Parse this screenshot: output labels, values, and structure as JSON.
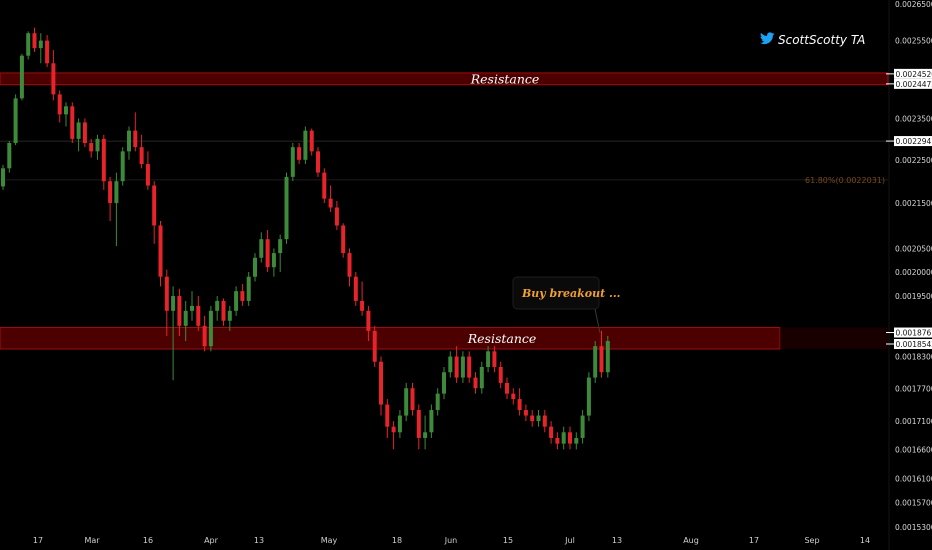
{
  "chart_data": {
    "type": "candlestick",
    "y_scale": "log",
    "ylim": [
      0.00153,
      0.00265
    ],
    "y_ticks": [
      "0.0026500",
      "0.0025500",
      "0.0023500",
      "0.0022500",
      "0.0021500",
      "0.0020500",
      "0.0020000",
      "0.0019500",
      "0.0018300",
      "0.0017700",
      "0.0017100",
      "0.0016600",
      "0.0016100",
      "0.0015700",
      "0.0015300"
    ],
    "price_labels": [
      {
        "text": "0.0024520",
        "value": 0.002452,
        "style": "boxed"
      },
      {
        "text": "0.0024472",
        "value": 0.0024472,
        "style": "boxed"
      },
      {
        "text": "0.0022947",
        "value": 0.0022947,
        "style": "boxed"
      },
      {
        "text": "0.0018767",
        "value": 0.0018767,
        "style": "boxed"
      },
      {
        "text": "0.0018542",
        "value": 0.0018542,
        "style": "boxed"
      }
    ],
    "x_ticks": [
      "17",
      "Mar",
      "16",
      "Apr",
      "13",
      "May",
      "18",
      "Jun",
      "15",
      "Jul",
      "13",
      "Aug",
      "17",
      "Sep",
      "14"
    ],
    "zones": [
      {
        "label": "Resistance",
        "low": 0.0024472,
        "high": 0.002452
      },
      {
        "label": "Resistance",
        "low": 0.0018542,
        "high": 0.0018767
      }
    ],
    "levels": [
      {
        "value": 0.0022947,
        "label": ""
      },
      {
        "value": 0.0022031,
        "label": "61.80%(0.0022031)"
      }
    ],
    "annotations": [
      {
        "text": "Buy breakout ..."
      }
    ],
    "candles": [
      [
        0.002188,
        0.002238,
        0.00218,
        0.00223
      ],
      [
        0.00223,
        0.002295,
        0.00222,
        0.00229
      ],
      [
        0.00229,
        0.00241,
        0.002285,
        0.0024
      ],
      [
        0.0024,
        0.002515,
        0.002395,
        0.00251
      ],
      [
        0.00251,
        0.002575,
        0.0025,
        0.00257
      ],
      [
        0.00257,
        0.002585,
        0.00252,
        0.00253
      ],
      [
        0.00253,
        0.00257,
        0.00249,
        0.00255
      ],
      [
        0.00255,
        0.002565,
        0.00248,
        0.00249
      ],
      [
        0.00249,
        0.002525,
        0.002395,
        0.00241
      ],
      [
        0.00241,
        0.00242,
        0.00234,
        0.00236
      ],
      [
        0.00236,
        0.00239,
        0.00233,
        0.00238
      ],
      [
        0.00238,
        0.00239,
        0.00229,
        0.0023
      ],
      [
        0.0023,
        0.00235,
        0.00227,
        0.00234
      ],
      [
        0.00234,
        0.00235,
        0.00228,
        0.00229
      ],
      [
        0.00229,
        0.0023,
        0.002255,
        0.00227
      ],
      [
        0.00227,
        0.00231,
        0.00225,
        0.0023
      ],
      [
        0.0023,
        0.00231,
        0.00218,
        0.0022
      ],
      [
        0.0022,
        0.00221,
        0.00211,
        0.00215
      ],
      [
        0.00215,
        0.00222,
        0.002055,
        0.0022
      ],
      [
        0.0022,
        0.00228,
        0.00219,
        0.00227
      ],
      [
        0.00227,
        0.00233,
        0.00225,
        0.00232
      ],
      [
        0.00232,
        0.002365,
        0.00227,
        0.00228
      ],
      [
        0.00228,
        0.00231,
        0.00223,
        0.00224
      ],
      [
        0.00224,
        0.00227,
        0.00218,
        0.00219
      ],
      [
        0.00219,
        0.0022,
        0.00206,
        0.0021
      ],
      [
        0.0021,
        0.00211,
        0.00197,
        0.00199
      ],
      [
        0.00199,
        0.002005,
        0.00187,
        0.00192
      ],
      [
        0.00192,
        0.00197,
        0.001785,
        0.00195
      ],
      [
        0.00195,
        0.001965,
        0.00187,
        0.00189
      ],
      [
        0.00189,
        0.00194,
        0.00186,
        0.00192
      ],
      [
        0.00192,
        0.00196,
        0.0019,
        0.00193
      ],
      [
        0.00193,
        0.00195,
        0.00188,
        0.00189
      ],
      [
        0.00189,
        0.00191,
        0.00184,
        0.00185
      ],
      [
        0.00185,
        0.00193,
        0.00184,
        0.00192
      ],
      [
        0.00192,
        0.00195,
        0.0019,
        0.00194
      ],
      [
        0.00194,
        0.001945,
        0.00189,
        0.0019
      ],
      [
        0.0019,
        0.00193,
        0.00188,
        0.00192
      ],
      [
        0.00192,
        0.00197,
        0.00191,
        0.00196
      ],
      [
        0.00196,
        0.001975,
        0.00193,
        0.00194
      ],
      [
        0.00194,
        0.002,
        0.00193,
        0.00199
      ],
      [
        0.00199,
        0.00204,
        0.00198,
        0.00203
      ],
      [
        0.00203,
        0.002085,
        0.00202,
        0.00207
      ],
      [
        0.00207,
        0.00209,
        0.002,
        0.00201
      ],
      [
        0.00201,
        0.00205,
        0.00199,
        0.00204
      ],
      [
        0.00204,
        0.00208,
        0.002,
        0.00207
      ],
      [
        0.00207,
        0.00222,
        0.00206,
        0.00221
      ],
      [
        0.00221,
        0.00229,
        0.0022,
        0.00228
      ],
      [
        0.00228,
        0.00229,
        0.00224,
        0.00225
      ],
      [
        0.00225,
        0.00233,
        0.00224,
        0.00232
      ],
      [
        0.00232,
        0.002325,
        0.00226,
        0.00227
      ],
      [
        0.00227,
        0.00228,
        0.00221,
        0.00222
      ],
      [
        0.00222,
        0.00223,
        0.00215,
        0.00216
      ],
      [
        0.00216,
        0.00219,
        0.00213,
        0.00214
      ],
      [
        0.00214,
        0.002155,
        0.00209,
        0.0021
      ],
      [
        0.0021,
        0.002105,
        0.00203,
        0.00204
      ],
      [
        0.00204,
        0.00205,
        0.00197,
        0.00199
      ],
      [
        0.00199,
        0.002,
        0.00193,
        0.00194
      ],
      [
        0.00194,
        0.00198,
        0.00191,
        0.00192
      ],
      [
        0.00192,
        0.00193,
        0.00186,
        0.00188
      ],
      [
        0.00188,
        0.00189,
        0.00181,
        0.00182
      ],
      [
        0.00182,
        0.00183,
        0.00172,
        0.00174
      ],
      [
        0.00174,
        0.00175,
        0.00168,
        0.0017
      ],
      [
        0.0017,
        0.00171,
        0.00166,
        0.00169
      ],
      [
        0.00169,
        0.00173,
        0.00168,
        0.00172
      ],
      [
        0.00172,
        0.00178,
        0.00171,
        0.00177
      ],
      [
        0.00177,
        0.00178,
        0.00172,
        0.00173
      ],
      [
        0.00173,
        0.00174,
        0.00166,
        0.00168
      ],
      [
        0.00168,
        0.00172,
        0.00166,
        0.00169
      ],
      [
        0.00169,
        0.00174,
        0.00168,
        0.00173
      ],
      [
        0.00173,
        0.00177,
        0.00172,
        0.00176
      ],
      [
        0.00176,
        0.00181,
        0.00175,
        0.0018
      ],
      [
        0.0018,
        0.00184,
        0.00179,
        0.00183
      ],
      [
        0.00183,
        0.00185,
        0.00178,
        0.00179
      ],
      [
        0.00179,
        0.00184,
        0.00178,
        0.00183
      ],
      [
        0.00183,
        0.00184,
        0.00178,
        0.00179
      ],
      [
        0.00179,
        0.0018,
        0.00176,
        0.00177
      ],
      [
        0.00177,
        0.00182,
        0.00176,
        0.00181
      ],
      [
        0.00181,
        0.00185,
        0.0018,
        0.00184
      ],
      [
        0.00184,
        0.00185,
        0.0018,
        0.00181
      ],
      [
        0.00181,
        0.00182,
        0.00177,
        0.00178
      ],
      [
        0.00178,
        0.00179,
        0.00175,
        0.00176
      ],
      [
        0.00176,
        0.00177,
        0.00174,
        0.00175
      ],
      [
        0.00175,
        0.00177,
        0.00172,
        0.00173
      ],
      [
        0.00173,
        0.00174,
        0.00171,
        0.00172
      ],
      [
        0.00172,
        0.00173,
        0.0017,
        0.00171
      ],
      [
        0.00171,
        0.00173,
        0.0017,
        0.00172
      ],
      [
        0.00172,
        0.00173,
        0.00169,
        0.0017
      ],
      [
        0.0017,
        0.00171,
        0.00167,
        0.00168
      ],
      [
        0.00168,
        0.00169,
        0.00166,
        0.00167
      ],
      [
        0.00167,
        0.0017,
        0.00166,
        0.00169
      ],
      [
        0.00169,
        0.0017,
        0.00166,
        0.00167
      ],
      [
        0.00167,
        0.00169,
        0.00166,
        0.00168
      ],
      [
        0.00168,
        0.00173,
        0.00167,
        0.00172
      ],
      [
        0.00172,
        0.0018,
        0.00171,
        0.00179
      ],
      [
        0.00179,
        0.00186,
        0.00178,
        0.00185
      ],
      [
        0.00185,
        0.00188,
        0.00179,
        0.0018
      ],
      [
        0.0018,
        0.00187,
        0.00179,
        0.00186
      ]
    ]
  },
  "colors": {
    "up": "#3d8b3a",
    "down": "#e8242b",
    "zone": "#8b0000",
    "background": "#000000",
    "annotation": "#f0a030",
    "brand_icon": "#1da1f2"
  },
  "branding": {
    "icon": "twitter-bird-icon",
    "text": "ScottScotty TA"
  }
}
